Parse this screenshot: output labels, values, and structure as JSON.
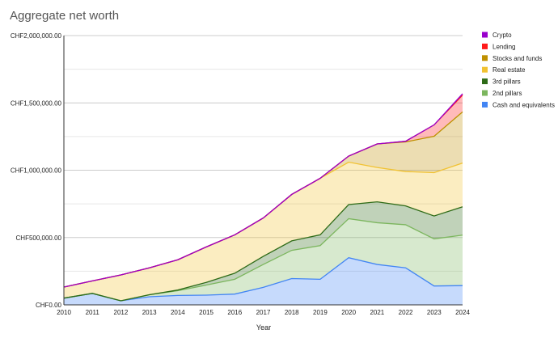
{
  "chart_data": {
    "type": "area",
    "stacked": true,
    "title": "Aggregate net worth",
    "xlabel": "Year",
    "ylabel": "",
    "ylim": [
      0,
      2000000
    ],
    "y_ticks": [
      0,
      500000,
      1000000,
      1500000,
      2000000
    ],
    "y_tick_labels": [
      "CHF0.00",
      "CHF500,000.00",
      "CHF1,000,000.00",
      "CHF1,500,000.00",
      "CHF2,000,000.00"
    ],
    "x": [
      2010,
      2011,
      2012,
      2013,
      2014,
      2015,
      2016,
      2017,
      2018,
      2019,
      2020,
      2021,
      2022,
      2023,
      2024
    ],
    "x_tick_labels": [
      "2010",
      "2011",
      "2012",
      "2013",
      "2014",
      "2015",
      "2016",
      "2017",
      "2018",
      "2019",
      "2020",
      "2021",
      "2022",
      "2023",
      "2024"
    ],
    "grid": true,
    "legend_position": "right",
    "series": [
      {
        "name": "Cash and equivalents",
        "color": "#4285f4",
        "values": [
          50000,
          85000,
          30000,
          60000,
          70000,
          72000,
          80000,
          130000,
          195000,
          190000,
          350000,
          300000,
          275000,
          140000,
          143000
        ]
      },
      {
        "name": "2nd pillars",
        "color": "#7cb65e",
        "values": [
          0,
          0,
          0,
          15000,
          35000,
          75000,
          110000,
          170000,
          210000,
          250000,
          290000,
          310000,
          320000,
          350000,
          375000
        ]
      },
      {
        "name": "3rd pillars",
        "color": "#2e6b17",
        "values": [
          0,
          0,
          0,
          0,
          5000,
          20000,
          45000,
          60000,
          70000,
          80000,
          105000,
          155000,
          140000,
          170000,
          210000
        ]
      },
      {
        "name": "Real estate",
        "color": "#f1c232",
        "values": [
          82000,
          93000,
          192000,
          200000,
          225000,
          263000,
          285000,
          285000,
          345000,
          420000,
          315000,
          255000,
          255000,
          322000,
          325000
        ]
      },
      {
        "name": "Stocks and funds",
        "color": "#bf9000",
        "values": [
          0,
          0,
          0,
          0,
          0,
          0,
          0,
          0,
          0,
          0,
          45000,
          175000,
          220000,
          270000,
          380000
        ]
      },
      {
        "name": "Lending",
        "color": "#ff1a1a",
        "values": [
          0,
          0,
          0,
          0,
          0,
          0,
          0,
          0,
          0,
          0,
          0,
          0,
          5000,
          85000,
          125000
        ]
      },
      {
        "name": "Crypto",
        "color": "#9900cc",
        "values": [
          0,
          0,
          0,
          0,
          0,
          0,
          0,
          0,
          0,
          0,
          0,
          0,
          0,
          0,
          10000
        ]
      }
    ],
    "legend_order": [
      "Crypto",
      "Lending",
      "Stocks and funds",
      "Real estate",
      "3rd pillars",
      "2nd pillars",
      "Cash and equivalents"
    ]
  }
}
